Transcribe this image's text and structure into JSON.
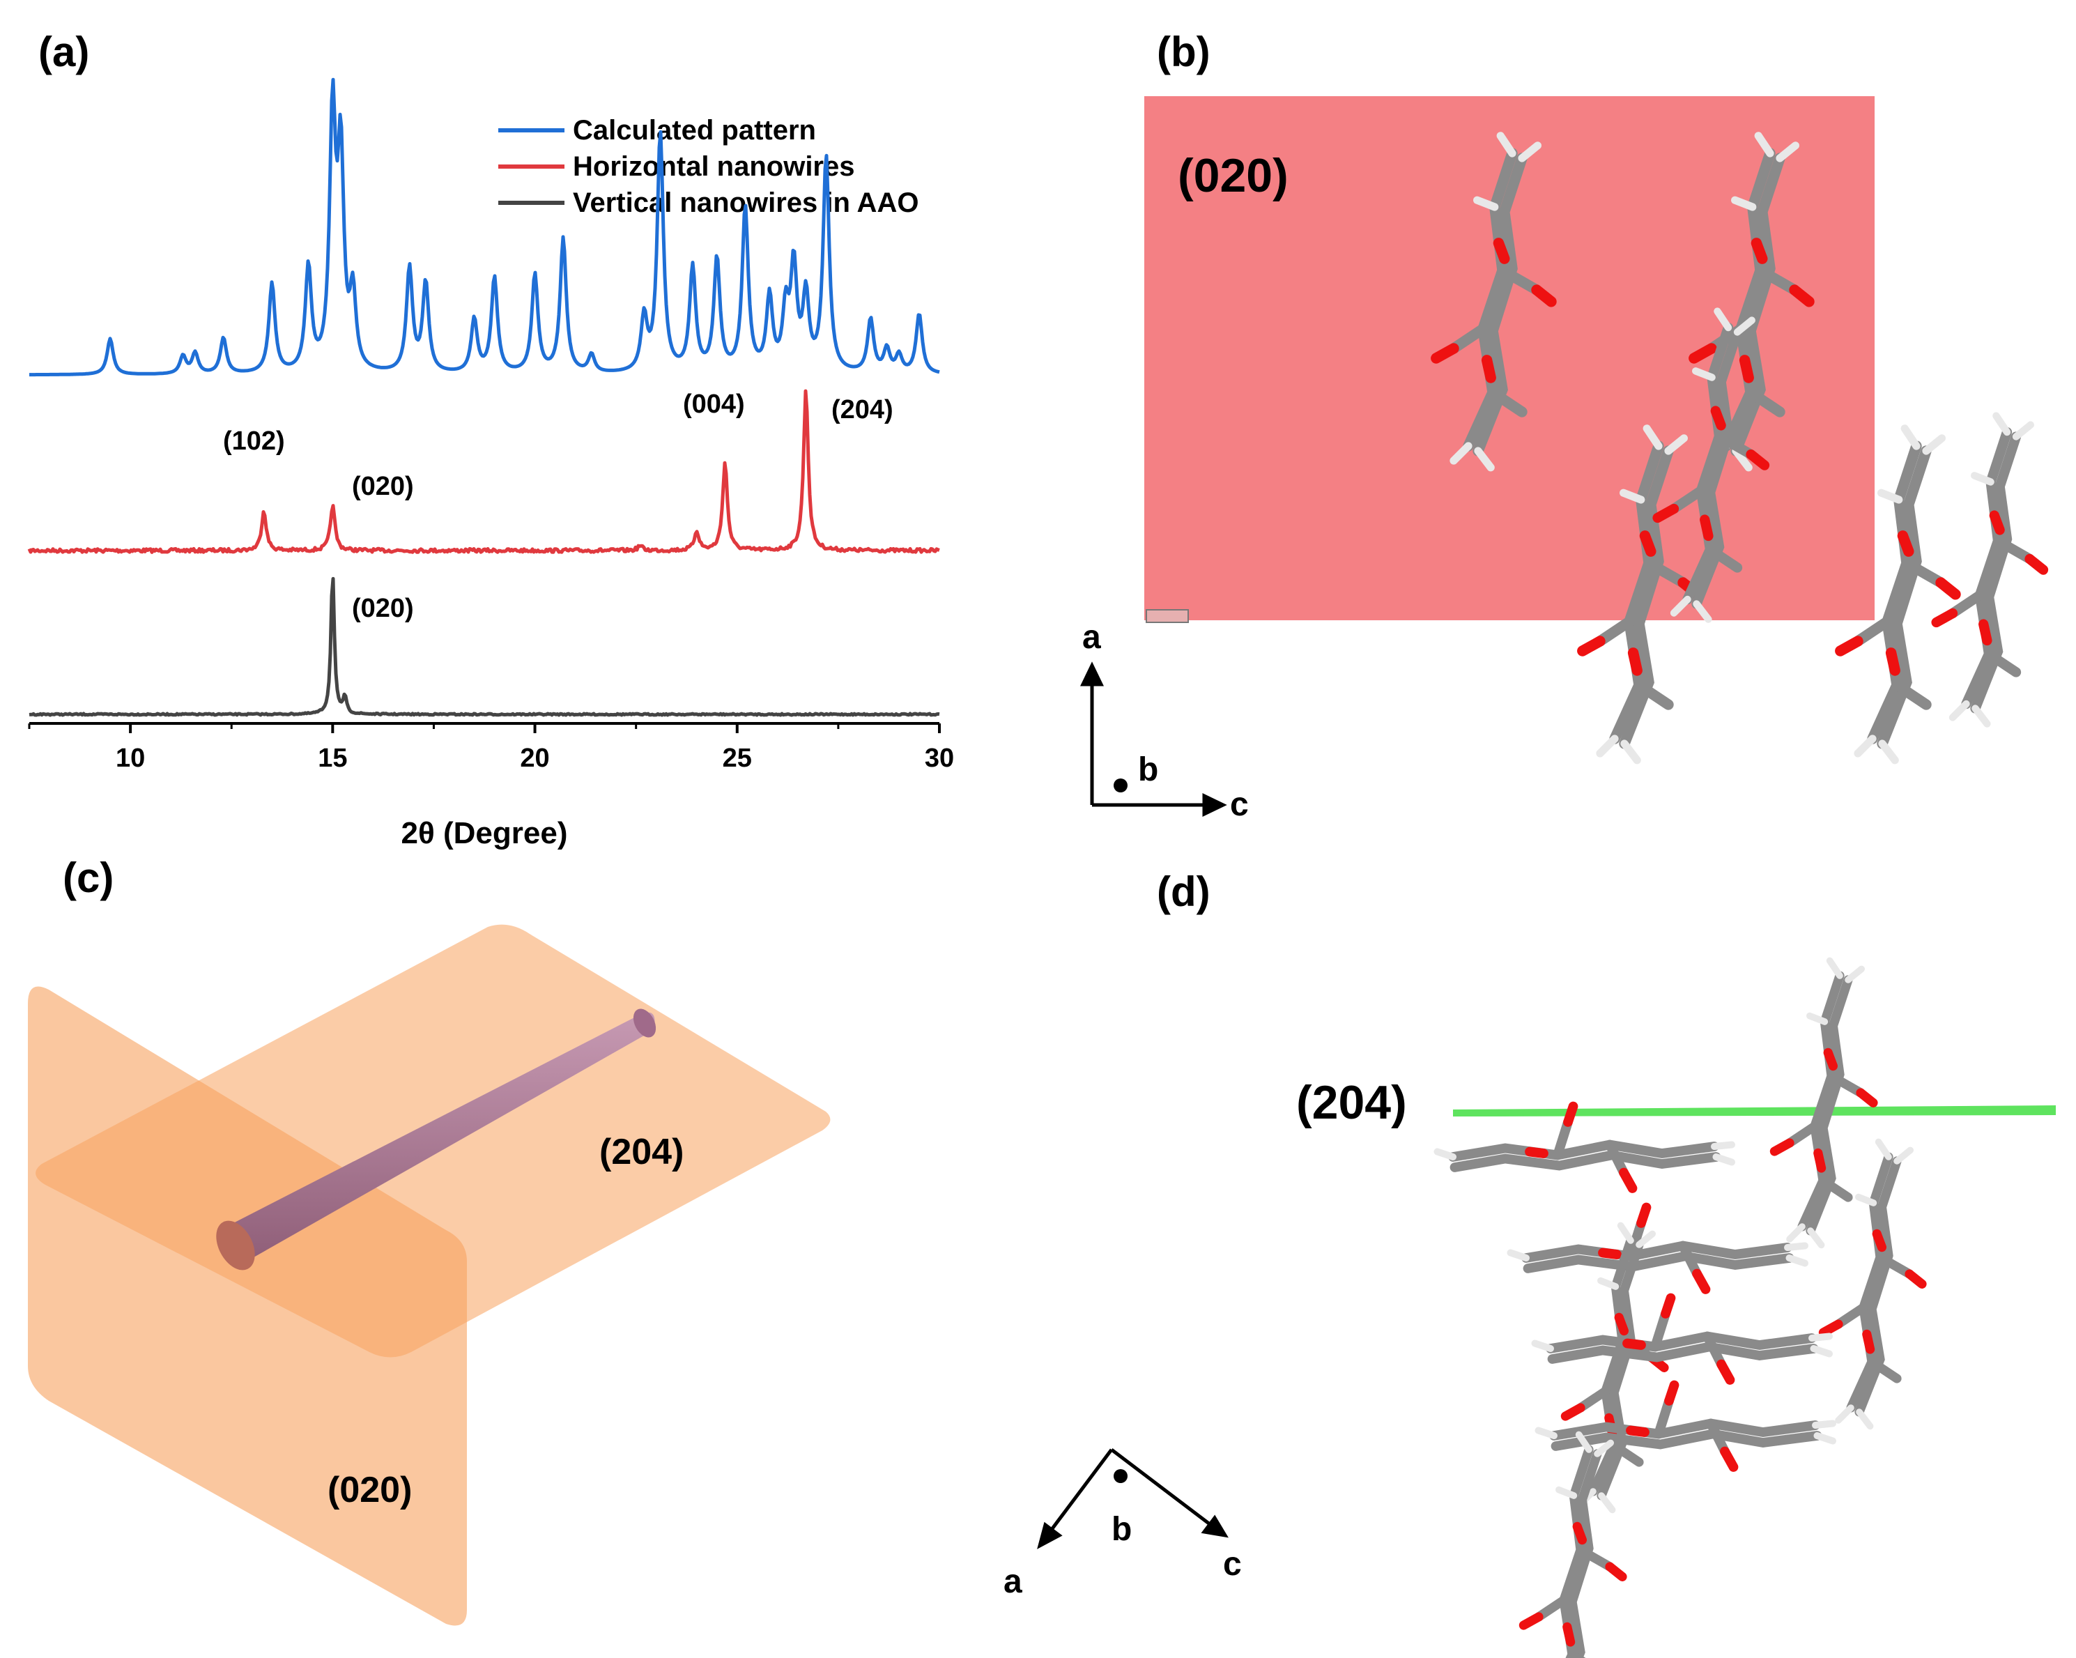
{
  "panels": {
    "a": "(a)",
    "b": "(b)",
    "c": "(c)",
    "d": "(d)"
  },
  "colors": {
    "calculated": "#1f6fd6",
    "horizontal": "#e0393e",
    "vertical": "#444444",
    "plane_020_b": "#f26a6e",
    "plane_orange": "#f7a25f",
    "nanowire": "#b07a96",
    "plane_204_d": "#5ee35e",
    "oxygen": "#dd1111",
    "carbon": "#8a8a8a"
  },
  "chart_data": {
    "type": "line",
    "xlabel": "2θ (Degree)",
    "ylabel": "",
    "xlim": [
      7.5,
      30
    ],
    "xticks": [
      10,
      15,
      20,
      25,
      30
    ],
    "legend": [
      "Calculated pattern",
      "Horizontal nanowires",
      "Vertical nanowires in AAO"
    ],
    "legend_position": "top-right",
    "series": [
      {
        "name": "Calculated pattern",
        "peaks": [
          [
            9.5,
            0.12
          ],
          [
            11.3,
            0.06
          ],
          [
            11.6,
            0.07
          ],
          [
            12.3,
            0.12
          ],
          [
            13.5,
            0.3
          ],
          [
            14.4,
            0.35
          ],
          [
            15.0,
            0.85
          ],
          [
            15.2,
            0.7
          ],
          [
            15.5,
            0.25
          ],
          [
            16.9,
            0.35
          ],
          [
            17.3,
            0.3
          ],
          [
            18.5,
            0.18
          ],
          [
            19.0,
            0.32
          ],
          [
            20.0,
            0.33
          ],
          [
            20.7,
            0.45
          ],
          [
            21.4,
            0.06
          ],
          [
            22.7,
            0.18
          ],
          [
            23.1,
            0.8
          ],
          [
            23.9,
            0.35
          ],
          [
            24.5,
            0.38
          ],
          [
            25.2,
            0.55
          ],
          [
            25.8,
            0.25
          ],
          [
            26.2,
            0.2
          ],
          [
            26.4,
            0.35
          ],
          [
            26.7,
            0.25
          ],
          [
            27.2,
            0.72
          ],
          [
            28.3,
            0.18
          ],
          [
            28.7,
            0.08
          ],
          [
            29.0,
            0.06
          ],
          [
            29.5,
            0.2
          ]
        ]
      },
      {
        "name": "Horizontal nanowires",
        "peaks": [
          [
            13.3,
            0.25
          ],
          [
            15.0,
            0.28
          ],
          [
            22.6,
            0.03
          ],
          [
            24.0,
            0.12
          ],
          [
            24.7,
            0.55
          ],
          [
            26.7,
            1.0
          ]
        ]
      },
      {
        "name": "Vertical nanowires in AAO",
        "peaks": [
          [
            15.0,
            1.0
          ],
          [
            15.3,
            0.12
          ]
        ]
      }
    ],
    "annotations": [
      {
        "text": "(102)",
        "series": "Horizontal nanowires",
        "x": 13.3
      },
      {
        "text": "(020)",
        "series": "Horizontal nanowires",
        "x": 15.0
      },
      {
        "text": "(004)",
        "series": "Horizontal nanowires",
        "x": 24.7
      },
      {
        "text": "(204)",
        "series": "Horizontal nanowires",
        "x": 26.7
      },
      {
        "text": "(020)",
        "series": "Vertical nanowires in AAO",
        "x": 15.0
      }
    ]
  },
  "panel_b": {
    "plane_label": "(020)",
    "axes": {
      "up": "a",
      "dot": "b",
      "right": "c"
    }
  },
  "panel_c": {
    "plane_top": "(204)",
    "plane_vertical": "(020)"
  },
  "panel_d": {
    "plane_label": "(204)",
    "axes": {
      "left": "a",
      "dot": "b",
      "right": "c"
    }
  }
}
